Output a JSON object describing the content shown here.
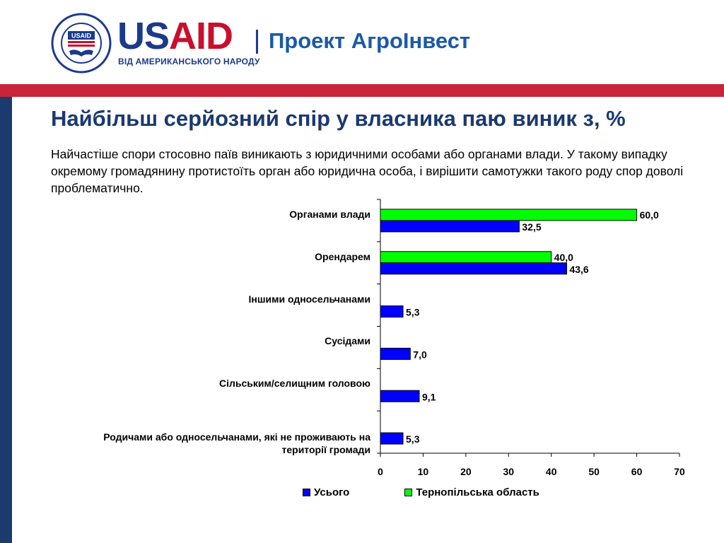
{
  "header": {
    "usaid_us": "US",
    "usaid_aid": "AID",
    "usaid_tagline": "ВІД АМЕРИКАНСЬКОГО НАРОДУ",
    "project": "Проект АгроІнвест",
    "seal_text": "USAID"
  },
  "title": "Найбільш серйозний спір у власника паю виник з, %",
  "subtitle": "Найчастіше спори стосовно паїв виникають з юридичними особами або органами влади. У такому випадку окремому громадянину протистоїть орган або юридична особа, і вирішити самотужки такого роду спор доволі проблематично.",
  "colors": {
    "total": "#0000ff",
    "ternopil": "#00ff00",
    "brand_blue": "#1b3a6e",
    "brand_red": "#c8243a"
  },
  "chart_data": {
    "type": "bar",
    "orientation": "horizontal",
    "categories": [
      "Органами влади",
      "Орендарем",
      "Іншими односельчанами",
      "Сусідами",
      "Сільським/селищним головою",
      "Родичами або односельчанами, які не проживають на території громади"
    ],
    "series": [
      {
        "name": "Усього",
        "color": "#0000ff",
        "values": [
          32.5,
          43.6,
          5.3,
          7.0,
          9.1,
          5.3
        ],
        "labels": [
          "32,5",
          "43,6",
          "5,3",
          "7,0",
          "9,1",
          "5,3"
        ]
      },
      {
        "name": "Тернопільська область",
        "color": "#00ff00",
        "values": [
          60.0,
          40.0,
          null,
          null,
          null,
          null
        ],
        "labels": [
          "60,0",
          "40,0",
          "",
          "",
          "",
          ""
        ]
      }
    ],
    "xlim": [
      0,
      70
    ],
    "xticks": [
      "0",
      "10",
      "20",
      "30",
      "40",
      "50",
      "60",
      "70"
    ],
    "legend_position": "bottom",
    "grid": false
  }
}
